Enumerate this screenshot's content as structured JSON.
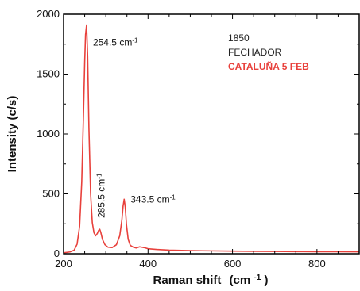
{
  "chart_data": {
    "type": "line",
    "xlabel_main": "Raman shift",
    "xlabel_unit_base": "(cm",
    "xlabel_unit_exp": "-1",
    "xlabel_unit_close": ")",
    "ylabel": "Intensity (c/s)",
    "xlim": [
      200,
      900
    ],
    "ylim": [
      0,
      2000
    ],
    "x_ticks": [
      "200",
      "400",
      "600",
      "800"
    ],
    "y_ticks": [
      "0",
      "500",
      "1000",
      "1500",
      "2000"
    ],
    "grid": false,
    "series": [
      {
        "color": "#e8413c",
        "x": [
          200,
          215,
          225,
          232,
          238,
          243,
          247,
          250,
          252,
          254.5,
          257,
          260,
          264,
          268,
          272,
          276,
          280,
          283,
          285.5,
          288,
          292,
          298,
          305,
          315,
          325,
          333,
          338,
          341,
          343.5,
          346,
          349,
          353,
          358,
          365,
          372,
          380,
          390,
          400,
          420,
          450,
          500,
          550,
          600,
          650,
          700,
          750,
          800,
          850,
          900
        ],
        "y": [
          8,
          15,
          30,
          80,
          230,
          600,
          1150,
          1600,
          1830,
          1910,
          1650,
          1050,
          500,
          260,
          175,
          150,
          170,
          195,
          205,
          180,
          120,
          75,
          55,
          52,
          75,
          150,
          280,
          400,
          455,
          390,
          240,
          120,
          70,
          55,
          48,
          58,
          52,
          42,
          36,
          30,
          26,
          24,
          22,
          20,
          19,
          18,
          17,
          17,
          16
        ]
      }
    ],
    "annotations": [
      {
        "base": "254.5 cm",
        "exp": "-1",
        "x": 254.5,
        "y": 1910
      },
      {
        "base": "285.5 cm",
        "exp": "-1",
        "x": 285.5,
        "y": 205
      },
      {
        "base": "343.5 cm",
        "exp": "-1",
        "x": 343.5,
        "y": 455
      }
    ],
    "info_lines": [
      {
        "text": "1850",
        "color": "#222222",
        "bold": false
      },
      {
        "text": "FECHADOR",
        "color": "#222222",
        "bold": false
      },
      {
        "text": "CATALUÑA 5 FEB",
        "color": "#e8413c",
        "bold": true
      }
    ]
  }
}
